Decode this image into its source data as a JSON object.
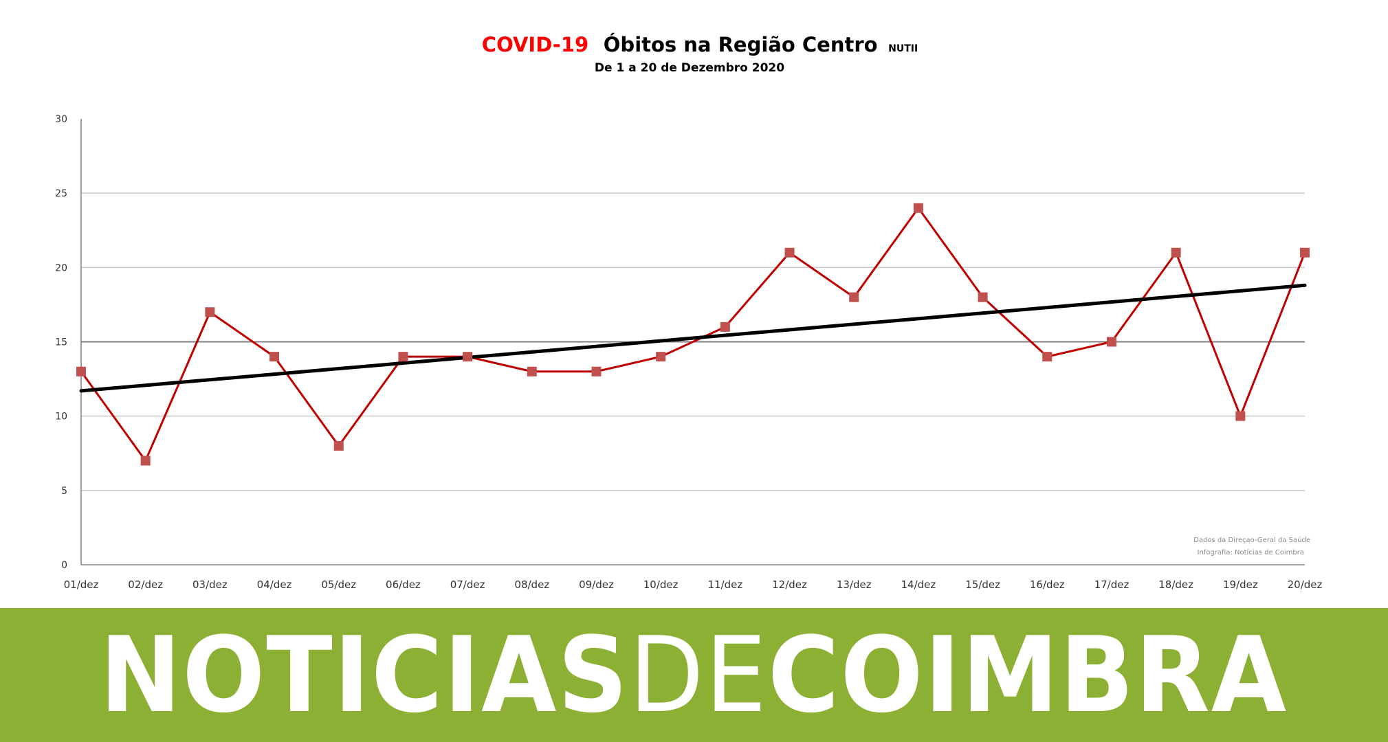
{
  "colors": {
    "title_accent": "#ff0000",
    "series_line": "#c00000",
    "series_marker": "#c0504d",
    "trend_line": "#000000",
    "gridline": "#c8c8c8",
    "gridline_highlight": "#808080",
    "footer_background": "#8cb034",
    "footer_text": "#ffffff"
  },
  "header": {
    "title_accent": "COVID-19",
    "title_main": "Óbitos na Região Centro",
    "title_suffix": "NUTII",
    "subtitle": "De 1 a 20 de Dezembro 2020"
  },
  "credits": {
    "line1": "Dados da Direçao-Geral da Saúde",
    "line2": "Infografia: Notícias de Coimbra"
  },
  "footer": {
    "logo_bold_1": "NOTICIAS",
    "logo_light": "DE",
    "logo_bold_2": "COIMBRA"
  },
  "chart_data": {
    "type": "line",
    "title": "Óbitos na Região Centro",
    "subtitle": "De 1 a 20 de Dezembro 2020",
    "xlabel": "",
    "ylabel": "",
    "categories": [
      "01/dez",
      "02/dez",
      "03/dez",
      "04/dez",
      "05/dez",
      "06/dez",
      "07/dez",
      "08/dez",
      "09/dez",
      "10/dez",
      "11/dez",
      "12/dez",
      "13/dez",
      "14/dez",
      "15/dez",
      "16/dez",
      "17/dez",
      "18/dez",
      "19/dez",
      "20/dez"
    ],
    "series": [
      {
        "values": [
          13,
          7,
          17,
          14,
          8,
          14,
          14,
          13,
          13,
          14,
          16,
          21,
          18,
          24,
          18,
          14,
          15,
          21,
          10,
          21
        ]
      }
    ],
    "trendline": {
      "type": "linear",
      "start": 11.7,
      "end": 18.8
    },
    "ylim": [
      0,
      30
    ],
    "yticks": [
      0,
      5,
      10,
      15,
      20,
      25,
      30
    ],
    "highlighted_gridline": 15,
    "grid": true,
    "legend": "none"
  }
}
